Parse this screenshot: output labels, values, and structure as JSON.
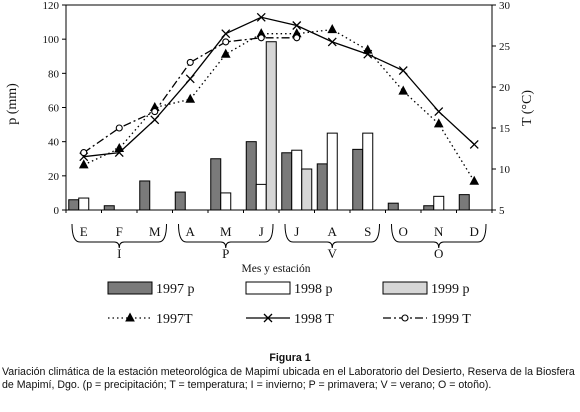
{
  "chart_data": {
    "type": "bar",
    "categories": [
      "E",
      "F",
      "M",
      "A",
      "M",
      "J",
      "J",
      "A",
      "S",
      "O",
      "N",
      "D"
    ],
    "xlabel": "Mes y estación",
    "ylabel_left": "p (mm)",
    "ylabel_right": "T (°C)",
    "ylim_left": [
      0,
      120
    ],
    "ylim_right": [
      5,
      30
    ],
    "yticks_left": [
      "0",
      "20",
      "40",
      "60",
      "80",
      "100",
      "120"
    ],
    "yticks_right": [
      "5",
      "10",
      "15",
      "20",
      "25",
      "30"
    ],
    "seasons": [
      {
        "label": "I",
        "months": [
          "E",
          "F",
          "M"
        ]
      },
      {
        "label": "P",
        "months": [
          "A",
          "M",
          "J"
        ]
      },
      {
        "label": "V",
        "months": [
          "J",
          "A",
          "S"
        ]
      },
      {
        "label": "O",
        "months": [
          "O",
          "N",
          "D"
        ]
      }
    ],
    "bar_series": [
      {
        "name": "1997 p",
        "color": "#7a7a7a",
        "axis": "left",
        "values": [
          6,
          2.5,
          17,
          10.5,
          30,
          40,
          33.5,
          27,
          35.5,
          4,
          2.5,
          9
        ]
      },
      {
        "name": "1998 p",
        "color": "#ffffff",
        "axis": "left",
        "values": [
          7,
          0,
          0,
          0,
          10,
          15,
          35,
          45,
          45,
          0,
          8,
          0
        ]
      },
      {
        "name": "1999 p",
        "color": "#d6d6d6",
        "axis": "left",
        "values": [
          0,
          0,
          0,
          0,
          0,
          98.5,
          24,
          0,
          0,
          0,
          0,
          0
        ]
      }
    ],
    "line_series": [
      {
        "name": "1997T",
        "style": "dotted",
        "marker": "triangle",
        "axis": "right",
        "values": [
          10.5,
          12.5,
          17.5,
          18.5,
          24,
          26.5,
          26.5,
          27,
          24.5,
          19.5,
          15.5,
          8.5
        ]
      },
      {
        "name": "1998 T",
        "style": "solid",
        "marker": "x",
        "axis": "right",
        "values": [
          11.5,
          12,
          16,
          21,
          26.5,
          28.5,
          27.5,
          25.5,
          24,
          22,
          17,
          13
        ]
      },
      {
        "name": "1999 T",
        "style": "dashdot",
        "marker": "circle",
        "axis": "right",
        "values": [
          12,
          15,
          17,
          23,
          25.5,
          26,
          26,
          null,
          null,
          null,
          null,
          null
        ]
      }
    ]
  },
  "caption": {
    "title": "Figura 1",
    "text": "Variación climática de la estación meteorológica de Mapimí ubicada en el Laboratorio del Desierto, Reserva de la Biosfera de Mapimí, Dgo. (p = precipitación; T = temperatura; I = invierno; P = primavera; V = verano; O = otoño)."
  }
}
